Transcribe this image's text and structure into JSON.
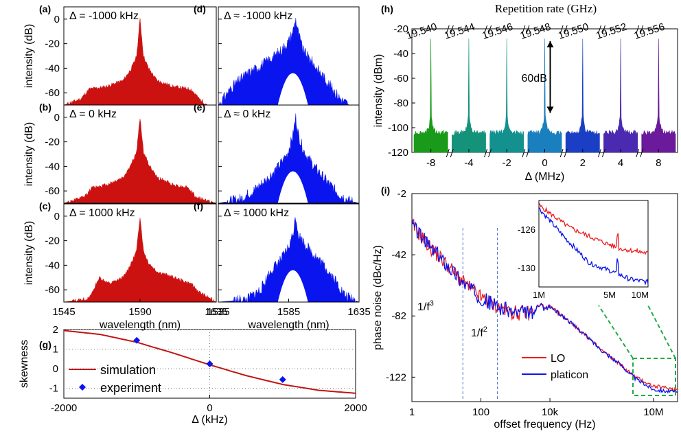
{
  "colors": {
    "red": "#cc1111",
    "blue": "#0a14ee",
    "green_dash": "#22aa44",
    "vline": "#5577cc"
  },
  "panels_left": {
    "ylabel": "intensity (dB)",
    "yticks": [
      "0",
      "-20",
      "-40",
      "-60"
    ],
    "xlabel": "wavelength (nm)",
    "xticks": [
      "1545",
      "1590",
      "1635"
    ],
    "items": [
      {
        "label": "(a)",
        "annotation": "Δ = -1000 kHz"
      },
      {
        "label": "(b)",
        "annotation": "Δ = 0 kHz"
      },
      {
        "label": "(c)",
        "annotation": "Δ = 1000 kHz"
      }
    ]
  },
  "panels_mid": {
    "xlabel": "wavelength (nm)",
    "xticks": [
      "1535",
      "1585",
      "1635"
    ],
    "items": [
      {
        "label": "(d)",
        "annotation": "Δ ≈ -1000 kHz"
      },
      {
        "label": "(e)",
        "annotation": "Δ ≈ 0 kHz"
      },
      {
        "label": "(f)",
        "annotation": "Δ ≈ 1000 kHz"
      }
    ]
  },
  "panel_h": {
    "label": "(h)",
    "top_title": "Repetition rate (GHz)",
    "rep_rates": [
      "19.540",
      "19.544",
      "19.546",
      "19.548",
      "19.550",
      "19.552",
      "19.556"
    ],
    "ylabel": "intensity (dBm)",
    "yticks": [
      "-20",
      "-40",
      "-60",
      "-80",
      "-100",
      "-120"
    ],
    "xlabel": "Δ (MHz)",
    "xticks": [
      "-8",
      "-4",
      "-2",
      "0",
      "2",
      "4",
      "8"
    ],
    "annotation": "60dB",
    "colors": [
      "#1a9a1a",
      "#14937a",
      "#12918f",
      "#1a7fbf",
      "#1a3fc4",
      "#4a2ab0",
      "#6a1a9a"
    ]
  },
  "panel_g": {
    "label": "(g)",
    "ylabel": "skewness",
    "xlabel": "Δ (kHz)",
    "yticks": [
      "2",
      "1",
      "0",
      "-1"
    ],
    "xticks": [
      "-2000",
      "0",
      "2000"
    ],
    "legend": [
      "simulation",
      "experiment"
    ]
  },
  "panel_i": {
    "label": "(i)",
    "ylabel": "phase noise (dBc/Hz)",
    "xlabel": "offset frequency (Hz)",
    "yticks": [
      "-2",
      "-42",
      "-82",
      "-122"
    ],
    "xticks": [
      "1",
      "100",
      "10k",
      "10M"
    ],
    "slope3": "1/f",
    "slope3_exp": "3",
    "slope2": "1/f",
    "slope2_exp": "2",
    "legend": [
      "LO",
      "platicon"
    ],
    "inset_yticks": [
      "-126",
      "-130"
    ],
    "inset_xticks": [
      "1M",
      "5M",
      "10M"
    ]
  },
  "chart_data": [
    {
      "type": "area",
      "panel": "(a)",
      "xlabel": "wavelength (nm)",
      "ylabel": "intensity (dB)",
      "xlim": [
        1545,
        1635
      ],
      "ylim": [
        -70,
        10
      ],
      "x": [
        1545,
        1555,
        1560,
        1570,
        1580,
        1585,
        1588,
        1590,
        1592,
        1595,
        1600,
        1610,
        1620,
        1625,
        1630,
        1635
      ],
      "y": [
        -70,
        -65,
        -57,
        -55,
        -50,
        -40,
        -30,
        0,
        -30,
        -40,
        -50,
        -55,
        -57,
        -65,
        -70,
        -70
      ]
    },
    {
      "type": "area",
      "panel": "(b)",
      "xlabel": "wavelength (nm)",
      "ylabel": "intensity (dB)",
      "xlim": [
        1545,
        1635
      ],
      "ylim": [
        -70,
        10
      ],
      "x": [
        1545,
        1557,
        1562,
        1570,
        1580,
        1585,
        1588,
        1590,
        1592,
        1595,
        1600,
        1610,
        1618,
        1623,
        1635
      ],
      "y": [
        -70,
        -65,
        -57,
        -55,
        -49,
        -38,
        -28,
        0,
        -28,
        -38,
        -49,
        -55,
        -57,
        -65,
        -70
      ]
    },
    {
      "type": "area",
      "panel": "(c)",
      "xlabel": "wavelength (nm)",
      "ylabel": "intensity (dB)",
      "xlim": [
        1545,
        1635
      ],
      "ylim": [
        -70,
        10
      ],
      "x": [
        1545,
        1560,
        1566,
        1572,
        1580,
        1585,
        1588,
        1590,
        1592,
        1595,
        1600,
        1610,
        1620,
        1625,
        1635
      ],
      "y": [
        -70,
        -67,
        -50,
        -55,
        -50,
        -38,
        -28,
        0,
        -28,
        -38,
        -45,
        -50,
        -55,
        -62,
        -70
      ]
    },
    {
      "type": "area",
      "panel": "(d)",
      "xlabel": "wavelength (nm)",
      "xlim": [
        1535,
        1635
      ],
      "ylim": [
        -70,
        10
      ],
      "x": [
        1535,
        1545,
        1555,
        1565,
        1575,
        1580,
        1585,
        1588,
        1590,
        1592,
        1595,
        1605,
        1615,
        1622,
        1628,
        1635
      ],
      "y": [
        -70,
        -55,
        -45,
        -38,
        -30,
        -25,
        -18,
        -10,
        0,
        -12,
        -25,
        -40,
        -55,
        -65,
        -70,
        -70
      ]
    },
    {
      "type": "area",
      "panel": "(e)",
      "xlabel": "wavelength (nm)",
      "xlim": [
        1535,
        1635
      ],
      "ylim": [
        -70,
        10
      ],
      "x": [
        1535,
        1550,
        1560,
        1570,
        1578,
        1584,
        1588,
        1590,
        1592,
        1596,
        1603,
        1612,
        1620,
        1628,
        1635
      ],
      "y": [
        -70,
        -67,
        -60,
        -50,
        -40,
        -30,
        -15,
        0,
        -15,
        -28,
        -40,
        -52,
        -62,
        -68,
        -70
      ]
    },
    {
      "type": "area",
      "panel": "(f)",
      "xlabel": "wavelength (nm)",
      "xlim": [
        1535,
        1635
      ],
      "ylim": [
        -70,
        10
      ],
      "x": [
        1535,
        1555,
        1565,
        1572,
        1580,
        1585,
        1588,
        1590,
        1592,
        1596,
        1602,
        1610,
        1618,
        1625,
        1635
      ],
      "y": [
        -70,
        -68,
        -60,
        -45,
        -35,
        -25,
        -15,
        0,
        -15,
        -22,
        -30,
        -40,
        -52,
        -65,
        -70
      ]
    },
    {
      "type": "line",
      "panel": "(g)",
      "xlabel": "Δ (kHz)",
      "ylabel": "skewness",
      "xlim": [
        -2000,
        2000
      ],
      "ylim": [
        -1.5,
        2
      ],
      "series": [
        {
          "name": "simulation",
          "x": [
            -2000,
            -1500,
            -1000,
            -500,
            0,
            500,
            1000,
            1500,
            2000
          ],
          "y": [
            1.95,
            1.75,
            1.35,
            0.8,
            0.2,
            -0.35,
            -0.8,
            -1.1,
            -1.25
          ]
        },
        {
          "name": "experiment",
          "x": [
            -1000,
            0,
            1000
          ],
          "y": [
            1.45,
            0.25,
            -0.55
          ]
        }
      ]
    },
    {
      "type": "line",
      "panel": "(i)",
      "xlabel": "offset frequency (Hz)",
      "ylabel": "phase noise (dBc/Hz)",
      "xscale": "log",
      "xlim": [
        1,
        50000000
      ],
      "ylim": [
        -138,
        -2
      ],
      "series": [
        {
          "name": "LO",
          "x": [
            1,
            3,
            10,
            30,
            100,
            300,
            1000,
            3000,
            10000,
            30000,
            100000,
            300000,
            1000000,
            3000000,
            10000000,
            50000000
          ],
          "y": [
            -22,
            -36,
            -48,
            -60,
            -70,
            -76,
            -80,
            -80,
            -76,
            -84,
            -94,
            -104,
            -113,
            -122,
            -128,
            -130
          ]
        },
        {
          "name": "platicon",
          "x": [
            1,
            3,
            10,
            30,
            100,
            300,
            1000,
            3000,
            10000,
            30000,
            100000,
            300000,
            1000000,
            3000000,
            10000000,
            50000000
          ],
          "y": [
            -22,
            -36,
            -48,
            -60,
            -70,
            -76,
            -80,
            -80,
            -76,
            -84,
            -94,
            -104,
            -113,
            -123,
            -130,
            -132
          ]
        }
      ]
    }
  ]
}
